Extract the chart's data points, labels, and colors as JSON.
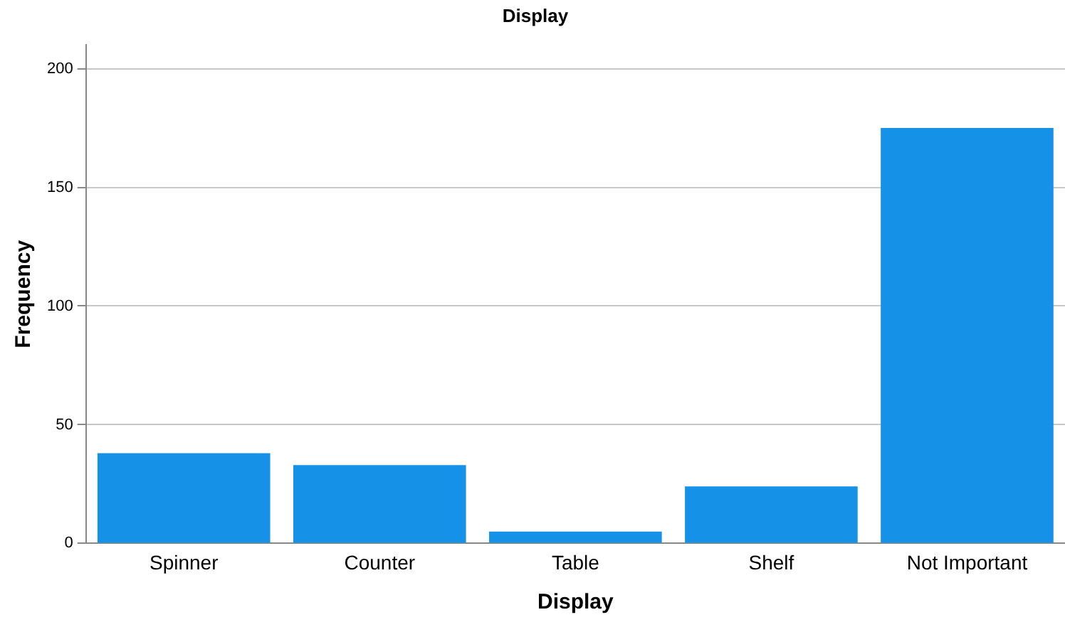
{
  "chart_data": {
    "type": "bar",
    "title": "Display",
    "xlabel": "Display",
    "ylabel": "Frequency",
    "categories": [
      "Spinner",
      "Counter",
      "Table",
      "Shelf",
      "Not Important"
    ],
    "values": [
      38,
      33,
      5,
      24,
      175
    ],
    "color": "#1591e8",
    "ylim": [
      0,
      210
    ],
    "yticks": [
      0,
      50,
      100,
      150,
      200
    ],
    "grid": "y",
    "legend": false
  }
}
